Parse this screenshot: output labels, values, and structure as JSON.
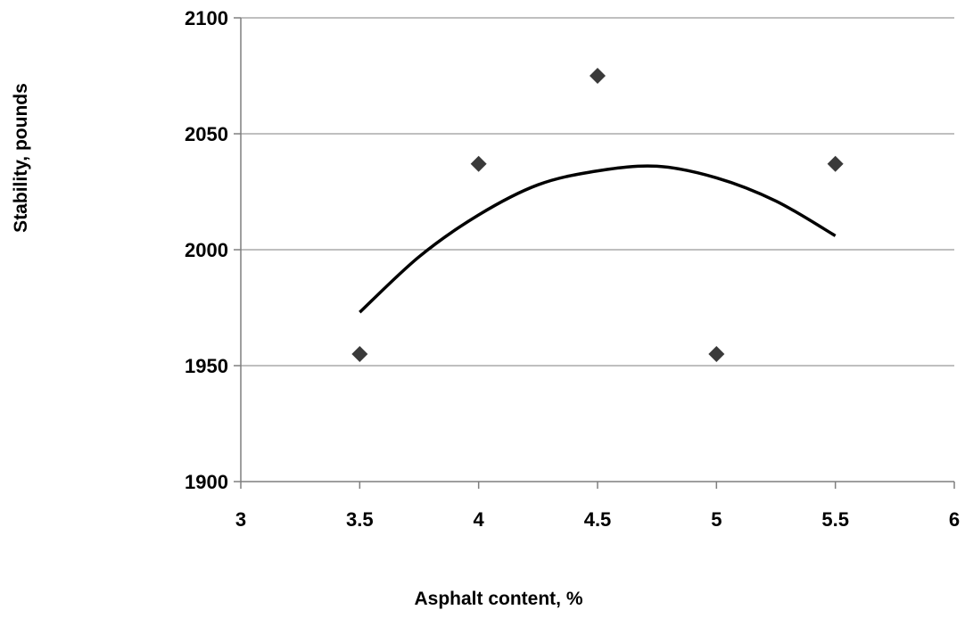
{
  "chart_data": {
    "type": "scatter",
    "title": "",
    "xlabel": "Asphalt content, %",
    "ylabel": "Stability, pounds",
    "xlim": [
      3,
      6
    ],
    "ylim": [
      1900,
      2100
    ],
    "x_ticks": [
      "3",
      "3.5",
      "4",
      "4.5",
      "5",
      "5.5",
      "6"
    ],
    "y_ticks": [
      "1900",
      "1950",
      "2000",
      "2050",
      "2100"
    ],
    "grid": "horizontal",
    "legend": "none",
    "series": [
      {
        "type": "scatter",
        "marker": "diamond",
        "color": "#3a3a3a",
        "x": [
          3.5,
          4.0,
          4.5,
          5.0,
          5.5
        ],
        "y": [
          1955,
          2037,
          2075,
          1955,
          2037
        ]
      },
      {
        "type": "line",
        "style": "polynomial-trendline",
        "color": "#000000",
        "x": [
          3.5,
          3.75,
          4.0,
          4.25,
          4.5,
          4.75,
          5.0,
          5.25,
          5.5
        ],
        "y": [
          1973,
          1997,
          2015,
          2028,
          2034,
          2036,
          2031,
          2021,
          2006
        ]
      }
    ]
  }
}
